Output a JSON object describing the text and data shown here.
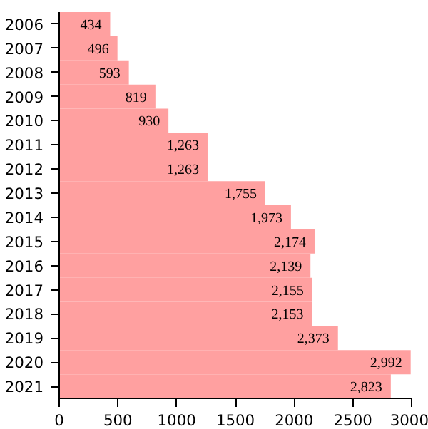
{
  "chart_data": {
    "type": "bar",
    "orientation": "horizontal",
    "categories": [
      "2006",
      "2007",
      "2008",
      "2009",
      "2010",
      "2011",
      "2012",
      "2013",
      "2014",
      "2015",
      "2016",
      "2017",
      "2018",
      "2019",
      "2020",
      "2021"
    ],
    "values": [
      434,
      496,
      593,
      819,
      930,
      1263,
      1263,
      1755,
      1973,
      2174,
      2139,
      2155,
      2153,
      2373,
      2992,
      2823
    ],
    "value_labels": [
      "434",
      "496",
      "593",
      "819",
      "930",
      "1,263",
      "1,263",
      "1,755",
      "1,973",
      "2,174",
      "2,139",
      "2,155",
      "2,153",
      "2,373",
      "2,992",
      "2,823"
    ],
    "color": "#ffa0a0",
    "xlim": [
      0,
      3000
    ],
    "xticks": [
      0,
      500,
      1000,
      1500,
      2000,
      2500,
      3000
    ],
    "grid": false
  }
}
